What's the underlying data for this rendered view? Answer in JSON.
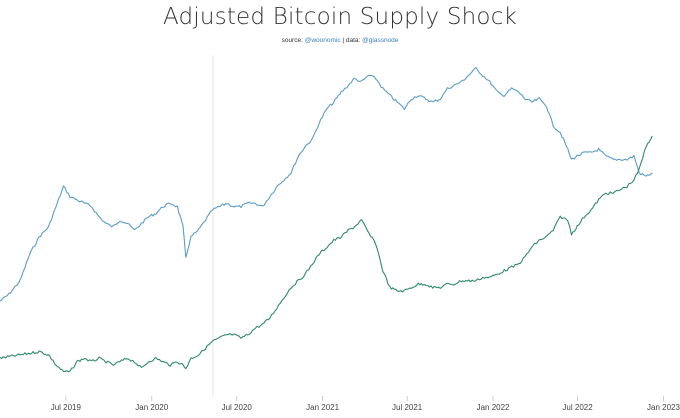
{
  "chart_data": {
    "type": "line",
    "title": "Adjusted Bitcoin Supply Shock",
    "subtitle": {
      "source_label": "source:",
      "source_handle": "@woonomic",
      "data_label": "| data:",
      "data_handle": "@glassnode"
    },
    "xlabel": "",
    "ylabel": "",
    "x_ticks": [
      "Jul 2019",
      "Jan 2020",
      "Jul 2020",
      "Jan 2021",
      "Jul 2021",
      "Jan 2022",
      "Jul 2022",
      "Jan 2023"
    ],
    "x_tick_dates": [
      "2019-07-01",
      "2020-01-01",
      "2020-07-01",
      "2021-01-01",
      "2021-07-01",
      "2022-01-01",
      "2022-07-01",
      "2023-01-01"
    ],
    "xlim": [
      "2019-02-10",
      "2023-01-15"
    ],
    "ylim": [
      0,
      100
    ],
    "grid": false,
    "legend": "none",
    "vertical_marker": "2020-05-11",
    "series": [
      {
        "color": "#5a9ec6",
        "points": [
          [
            "2019-02-10",
            27
          ],
          [
            "2019-03-01",
            29
          ],
          [
            "2019-03-25",
            33
          ],
          [
            "2019-04-15",
            41
          ],
          [
            "2019-05-05",
            46
          ],
          [
            "2019-05-25",
            49
          ],
          [
            "2019-06-10",
            55
          ],
          [
            "2019-06-26",
            61
          ],
          [
            "2019-07-10",
            58
          ],
          [
            "2019-07-25",
            57
          ],
          [
            "2019-08-10",
            56
          ],
          [
            "2019-08-25",
            55
          ],
          [
            "2019-09-10",
            52
          ],
          [
            "2019-09-25",
            50
          ],
          [
            "2019-10-10",
            49
          ],
          [
            "2019-10-25",
            51
          ],
          [
            "2019-11-10",
            50
          ],
          [
            "2019-11-25",
            48
          ],
          [
            "2019-12-10",
            50
          ],
          [
            "2019-12-25",
            52
          ],
          [
            "2020-01-10",
            53
          ],
          [
            "2020-01-25",
            55
          ],
          [
            "2020-02-10",
            56
          ],
          [
            "2020-02-25",
            55
          ],
          [
            "2020-03-08",
            49
          ],
          [
            "2020-03-14",
            40
          ],
          [
            "2020-03-25",
            46
          ],
          [
            "2020-04-10",
            48
          ],
          [
            "2020-04-25",
            51
          ],
          [
            "2020-05-10",
            54
          ],
          [
            "2020-05-25",
            55
          ],
          [
            "2020-06-10",
            56
          ],
          [
            "2020-06-25",
            55
          ],
          [
            "2020-07-10",
            55
          ],
          [
            "2020-07-25",
            56
          ],
          [
            "2020-08-10",
            56
          ],
          [
            "2020-08-25",
            55
          ],
          [
            "2020-09-10",
            58
          ],
          [
            "2020-09-25",
            61
          ],
          [
            "2020-10-10",
            63
          ],
          [
            "2020-10-25",
            65
          ],
          [
            "2020-11-10",
            70
          ],
          [
            "2020-11-25",
            73
          ],
          [
            "2020-12-10",
            75
          ],
          [
            "2020-12-25",
            80
          ],
          [
            "2021-01-10",
            84
          ],
          [
            "2021-01-25",
            86
          ],
          [
            "2021-02-10",
            89
          ],
          [
            "2021-02-25",
            91
          ],
          [
            "2021-03-10",
            93
          ],
          [
            "2021-03-25",
            92
          ],
          [
            "2021-04-10",
            94
          ],
          [
            "2021-04-25",
            93
          ],
          [
            "2021-05-10",
            90
          ],
          [
            "2021-05-25",
            88
          ],
          [
            "2021-06-10",
            86
          ],
          [
            "2021-06-25",
            84
          ],
          [
            "2021-07-10",
            87
          ],
          [
            "2021-07-25",
            88
          ],
          [
            "2021-08-10",
            87
          ],
          [
            "2021-08-25",
            86
          ],
          [
            "2021-09-10",
            87
          ],
          [
            "2021-09-25",
            90
          ],
          [
            "2021-10-10",
            91
          ],
          [
            "2021-10-25",
            92
          ],
          [
            "2021-11-10",
            94
          ],
          [
            "2021-11-25",
            96
          ],
          [
            "2021-12-10",
            94
          ],
          [
            "2021-12-25",
            92
          ],
          [
            "2022-01-10",
            89
          ],
          [
            "2022-01-25",
            88
          ],
          [
            "2022-02-10",
            90
          ],
          [
            "2022-02-25",
            89
          ],
          [
            "2022-03-10",
            87
          ],
          [
            "2022-03-25",
            86
          ],
          [
            "2022-04-10",
            87
          ],
          [
            "2022-04-25",
            85
          ],
          [
            "2022-05-10",
            79
          ],
          [
            "2022-05-25",
            77
          ],
          [
            "2022-06-10",
            72
          ],
          [
            "2022-06-18",
            69
          ],
          [
            "2022-06-30",
            70
          ],
          [
            "2022-07-15",
            71
          ],
          [
            "2022-07-30",
            71
          ],
          [
            "2022-08-15",
            72
          ],
          [
            "2022-08-30",
            70
          ],
          [
            "2022-09-15",
            69
          ],
          [
            "2022-09-30",
            69
          ],
          [
            "2022-10-15",
            69
          ],
          [
            "2022-10-30",
            70
          ],
          [
            "2022-11-10",
            65
          ],
          [
            "2022-11-25",
            64
          ],
          [
            "2022-12-08",
            65
          ]
        ]
      },
      {
        "color": "#2f8a6e",
        "points": [
          [
            "2019-02-10",
            10
          ],
          [
            "2019-03-01",
            10.5
          ],
          [
            "2019-03-25",
            11
          ],
          [
            "2019-04-15",
            11.5
          ],
          [
            "2019-05-05",
            12
          ],
          [
            "2019-05-25",
            11
          ],
          [
            "2019-06-10",
            8
          ],
          [
            "2019-06-26",
            6
          ],
          [
            "2019-07-10",
            6
          ],
          [
            "2019-07-25",
            9
          ],
          [
            "2019-08-10",
            10
          ],
          [
            "2019-08-25",
            9
          ],
          [
            "2019-09-10",
            10
          ],
          [
            "2019-09-25",
            9
          ],
          [
            "2019-10-10",
            8
          ],
          [
            "2019-10-25",
            9
          ],
          [
            "2019-11-10",
            10
          ],
          [
            "2019-11-25",
            9
          ],
          [
            "2019-12-10",
            7
          ],
          [
            "2019-12-25",
            9
          ],
          [
            "2020-01-10",
            10
          ],
          [
            "2020-01-25",
            9
          ],
          [
            "2020-02-10",
            8
          ],
          [
            "2020-02-25",
            9
          ],
          [
            "2020-03-08",
            8
          ],
          [
            "2020-03-14",
            7
          ],
          [
            "2020-03-25",
            10
          ],
          [
            "2020-04-10",
            11
          ],
          [
            "2020-04-25",
            13
          ],
          [
            "2020-05-10",
            15
          ],
          [
            "2020-05-25",
            16
          ],
          [
            "2020-06-10",
            17
          ],
          [
            "2020-06-25",
            17
          ],
          [
            "2020-07-10",
            16
          ],
          [
            "2020-07-25",
            17
          ],
          [
            "2020-08-10",
            19
          ],
          [
            "2020-08-25",
            20
          ],
          [
            "2020-09-10",
            22
          ],
          [
            "2020-09-25",
            25
          ],
          [
            "2020-10-10",
            28
          ],
          [
            "2020-10-25",
            31
          ],
          [
            "2020-11-10",
            33
          ],
          [
            "2020-11-25",
            35
          ],
          [
            "2020-12-10",
            38
          ],
          [
            "2020-12-25",
            41
          ],
          [
            "2021-01-10",
            43
          ],
          [
            "2021-01-25",
            45
          ],
          [
            "2021-02-10",
            46
          ],
          [
            "2021-02-25",
            48
          ],
          [
            "2021-03-10",
            49
          ],
          [
            "2021-03-25",
            51
          ],
          [
            "2021-04-10",
            47
          ],
          [
            "2021-04-25",
            44
          ],
          [
            "2021-05-10",
            36
          ],
          [
            "2021-05-25",
            31
          ],
          [
            "2021-06-10",
            30
          ],
          [
            "2021-06-25",
            30
          ],
          [
            "2021-07-10",
            31
          ],
          [
            "2021-07-25",
            32
          ],
          [
            "2021-08-10",
            32
          ],
          [
            "2021-08-25",
            31
          ],
          [
            "2021-09-10",
            31
          ],
          [
            "2021-09-25",
            32
          ],
          [
            "2021-10-10",
            32
          ],
          [
            "2021-10-25",
            33
          ],
          [
            "2021-11-10",
            33
          ],
          [
            "2021-11-25",
            33
          ],
          [
            "2021-12-10",
            34
          ],
          [
            "2021-12-25",
            34
          ],
          [
            "2022-01-10",
            35
          ],
          [
            "2022-01-25",
            36
          ],
          [
            "2022-02-10",
            37
          ],
          [
            "2022-02-25",
            38
          ],
          [
            "2022-03-10",
            40
          ],
          [
            "2022-03-25",
            43
          ],
          [
            "2022-04-10",
            45
          ],
          [
            "2022-04-25",
            46
          ],
          [
            "2022-05-10",
            48
          ],
          [
            "2022-05-25",
            52
          ],
          [
            "2022-06-10",
            51
          ],
          [
            "2022-06-18",
            47
          ],
          [
            "2022-06-30",
            49
          ],
          [
            "2022-07-15",
            52
          ],
          [
            "2022-07-30",
            54
          ],
          [
            "2022-08-15",
            57
          ],
          [
            "2022-08-30",
            59
          ],
          [
            "2022-09-15",
            59
          ],
          [
            "2022-09-30",
            60
          ],
          [
            "2022-10-15",
            61
          ],
          [
            "2022-10-30",
            63
          ],
          [
            "2022-11-10",
            66
          ],
          [
            "2022-11-25",
            73
          ],
          [
            "2022-12-08",
            76
          ]
        ]
      }
    ]
  }
}
